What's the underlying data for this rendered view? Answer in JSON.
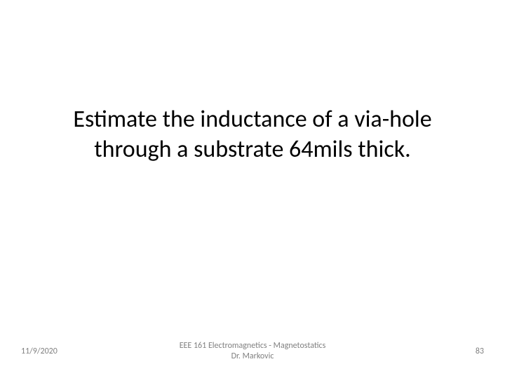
{
  "slide": {
    "title": "Estimate the inductance of a via-hole through a substrate 64mils thick.",
    "title_fontsize": 34,
    "title_color": "#000000",
    "background_color": "#ffffff"
  },
  "footer": {
    "date": "11/9/2020",
    "center_line1": "EEE 161 Electromagnetics - Magnetostatics",
    "center_line2": "Dr. Markovic",
    "page_number": "83",
    "font_color": "#808080",
    "fontsize": 12
  }
}
